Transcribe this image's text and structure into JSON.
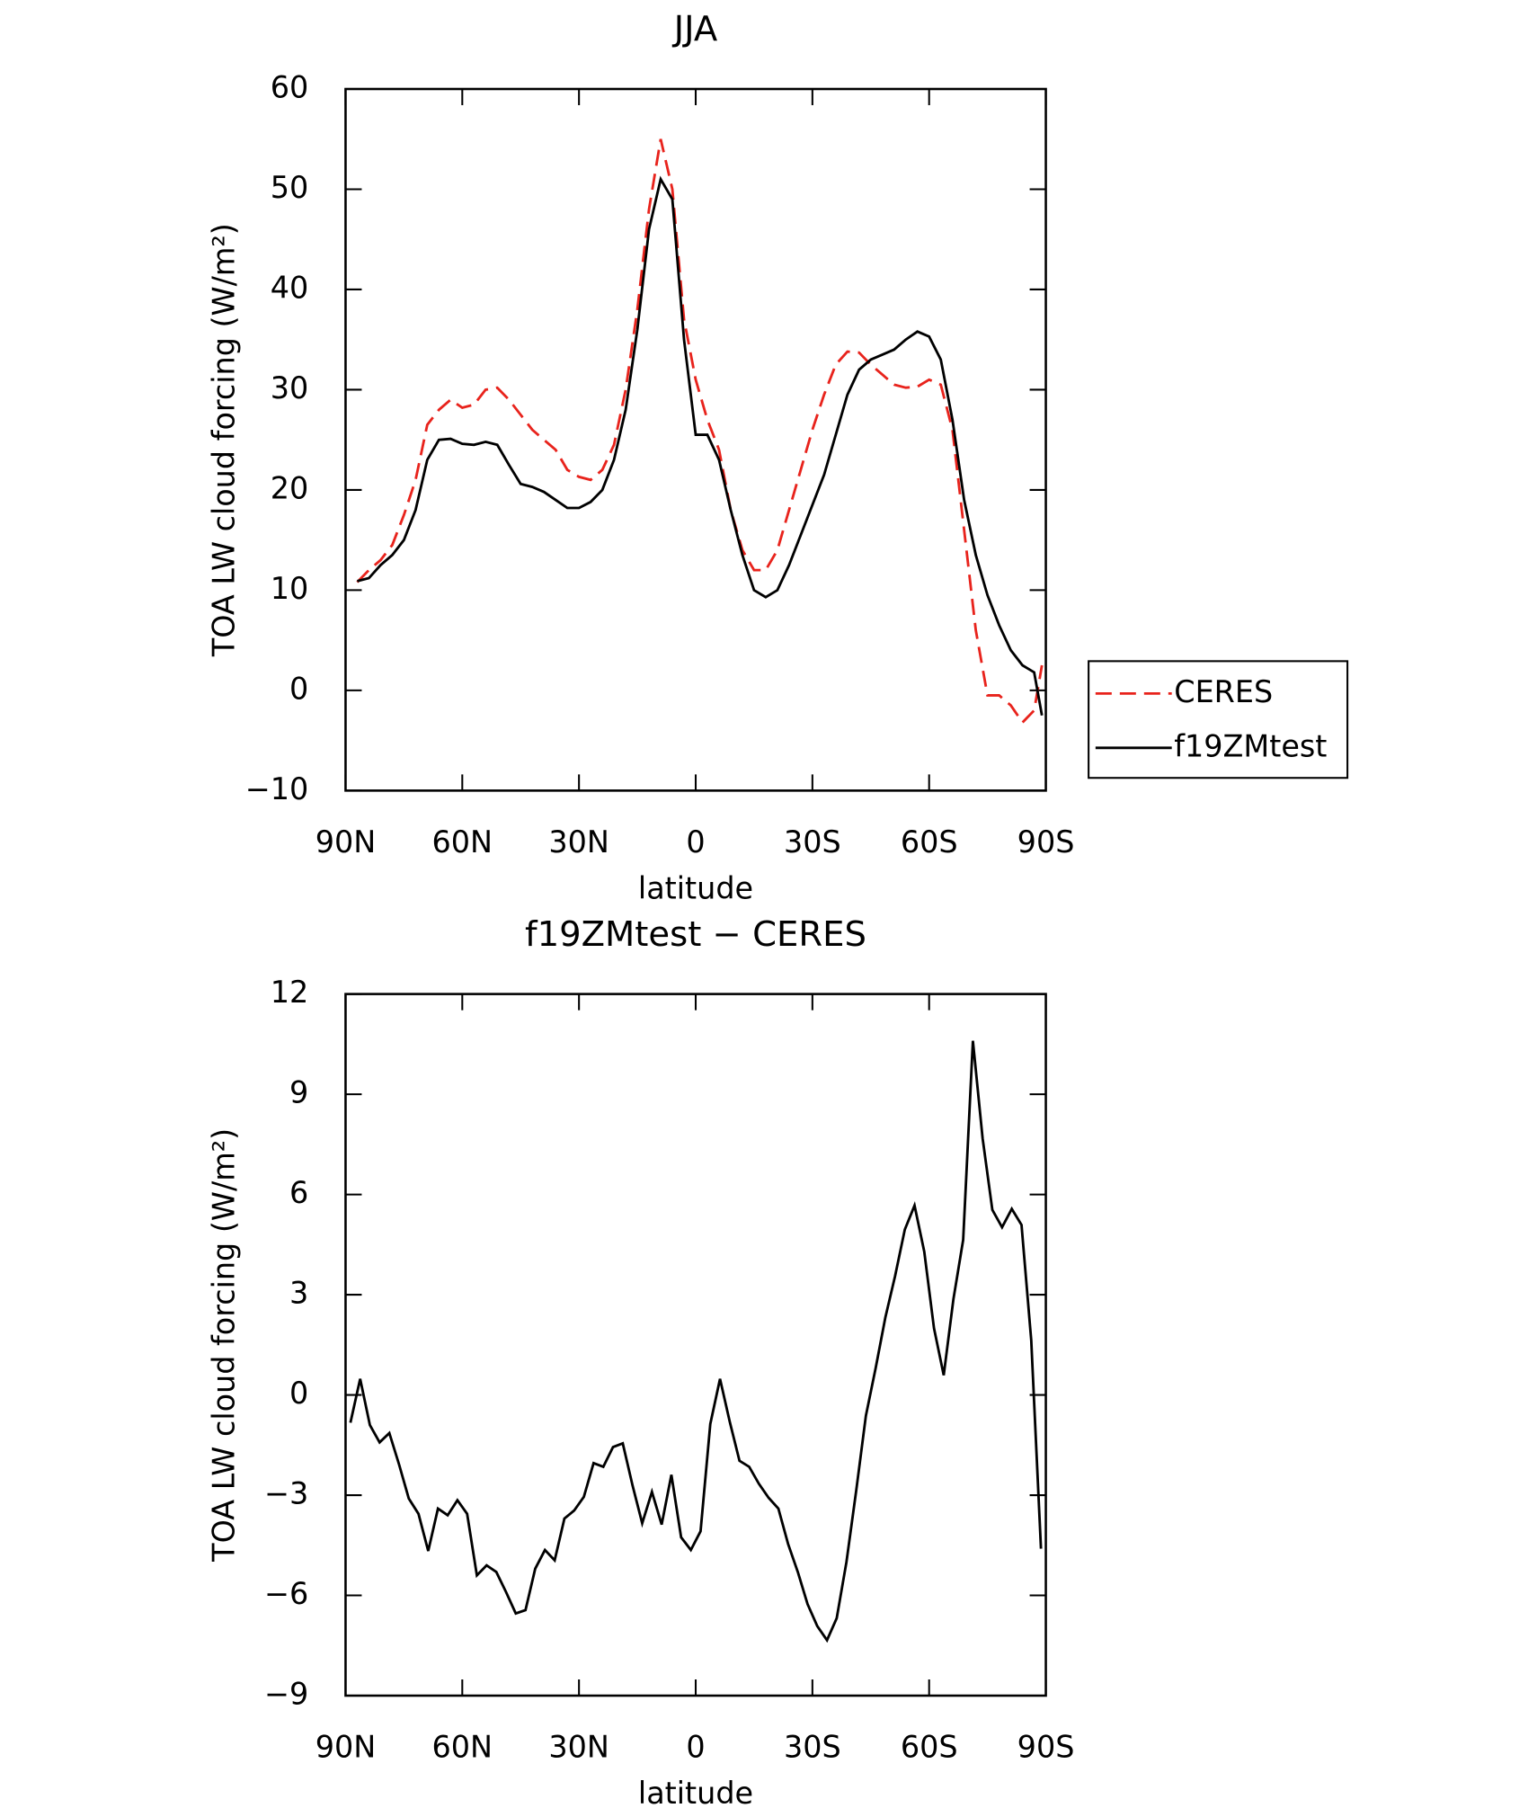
{
  "chart_data": [
    {
      "type": "line",
      "title": "JJA",
      "xlabel": "latitude",
      "ylabel": "TOA LW cloud forcing (W/m²)",
      "xlim": [
        90,
        -90
      ],
      "xticks": [
        {
          "value": 90,
          "label": "90N"
        },
        {
          "value": 60,
          "label": "60N"
        },
        {
          "value": 30,
          "label": "30N"
        },
        0,
        {
          "value": -30,
          "label": "30S"
        },
        {
          "value": -60,
          "label": "60S"
        },
        {
          "value": -90,
          "label": "90S"
        }
      ],
      "ylim": [
        -10,
        60
      ],
      "yticks": [
        {
          "value": -10,
          "label": "−10"
        },
        0,
        10,
        20,
        30,
        40,
        50,
        60
      ],
      "legend": "right",
      "x": [
        87,
        84,
        81,
        78,
        75,
        72,
        69,
        66,
        63,
        60,
        57,
        54,
        51,
        48,
        45,
        42,
        39,
        36,
        33,
        30,
        27,
        24,
        21,
        18,
        15,
        12,
        9,
        6,
        3,
        0,
        -3,
        -6,
        -9,
        -12,
        -15,
        -18,
        -21,
        -24,
        -27,
        -30,
        -33,
        -36,
        -39,
        -42,
        -45,
        -48,
        -51,
        -54,
        -57,
        -60,
        -63,
        -66,
        -69,
        -72,
        -75,
        -78,
        -81,
        -84,
        -87,
        -89
      ],
      "series": [
        {
          "name": "CERES",
          "color": "#e8231c",
          "dash": "dashed",
          "values": [
            10.8,
            12,
            13,
            14.5,
            17.5,
            21,
            26.5,
            28,
            29,
            28.2,
            28.5,
            30,
            30.2,
            29,
            27.5,
            26,
            25,
            24,
            22,
            21.3,
            21,
            22,
            24.5,
            30,
            38,
            48,
            55,
            50,
            37,
            31,
            27,
            24,
            18,
            14,
            12,
            12,
            14,
            18,
            22,
            26,
            29.5,
            32.5,
            33.8,
            33.7,
            32.5,
            31.5,
            30.5,
            30.2,
            30.3,
            31,
            30.5,
            26,
            16,
            6,
            -0.5,
            -0.5,
            -1.5,
            -3.2,
            -2,
            2.5
          ]
        },
        {
          "name": "f19ZMtest",
          "color": "#000000",
          "dash": "solid",
          "values": [
            10.9,
            11.2,
            12.5,
            13.5,
            15,
            18,
            23,
            25,
            25.1,
            24.6,
            24.5,
            24.8,
            24.5,
            22.5,
            20.6,
            20.3,
            19.8,
            19,
            18.2,
            18.2,
            18.8,
            20,
            23,
            28,
            36,
            46,
            51,
            49,
            35,
            25.5,
            25.5,
            23,
            18,
            13.5,
            10,
            9.3,
            10,
            12.5,
            15.5,
            18.5,
            21.5,
            25.5,
            29.5,
            32,
            33,
            33.5,
            34,
            35,
            35.8,
            35.3,
            33,
            27,
            19,
            13.5,
            9.5,
            6.5,
            4,
            2.5,
            1.8,
            -2.5
          ]
        }
      ]
    },
    {
      "type": "line",
      "title": "f19ZMtest − CERES",
      "xlabel": "latitude",
      "ylabel": "TOA LW cloud forcing (W/m²)",
      "xlim": [
        90,
        -90
      ],
      "xticks": [
        {
          "value": 90,
          "label": "90N"
        },
        {
          "value": 60,
          "label": "60N"
        },
        {
          "value": 30,
          "label": "30N"
        },
        0,
        {
          "value": -30,
          "label": "30S"
        },
        {
          "value": -60,
          "label": "60S"
        },
        {
          "value": -90,
          "label": "90S"
        }
      ],
      "ylim": [
        -9,
        12
      ],
      "yticks": [
        {
          "value": -9,
          "label": "−9"
        },
        {
          "value": -6,
          "label": "−6"
        },
        {
          "value": -3,
          "label": "−3"
        },
        0,
        3,
        6,
        9,
        12
      ],
      "x": [
        88.75,
        86.25,
        83.75,
        81.25,
        78.75,
        76.25,
        73.75,
        71.25,
        68.75,
        66.25,
        63.75,
        61.25,
        58.75,
        56.25,
        53.75,
        51.25,
        48.75,
        46.25,
        43.75,
        41.25,
        38.75,
        36.25,
        33.75,
        31.25,
        28.75,
        26.25,
        23.75,
        21.25,
        18.75,
        16.25,
        13.75,
        11.25,
        8.75,
        6.25,
        3.75,
        1.25,
        -1.25,
        -3.75,
        -6.25,
        -8.75,
        -11.25,
        -13.75,
        -16.25,
        -18.75,
        -21.25,
        -23.75,
        -26.25,
        -28.75,
        -31.25,
        -33.75,
        -36.25,
        -38.75,
        -41.25,
        -43.75,
        -46.25,
        -48.75,
        -51.25,
        -53.75,
        -56.25,
        -58.75,
        -61.25,
        -63.75,
        -66.25,
        -68.75,
        -71.25,
        -73.75,
        -76.25,
        -78.75,
        -81.25,
        -83.75,
        -86.25,
        -88.75
      ],
      "series": [
        {
          "color": "#000000",
          "dash": "solid",
          "values": [
            -0.83,
            0.48,
            -0.9,
            -1.42,
            -1.14,
            -2.08,
            -3.1,
            -3.56,
            -4.67,
            -3.4,
            -3.6,
            -3.15,
            -3.56,
            -5.4,
            -5.1,
            -5.3,
            -5.9,
            -6.54,
            -6.44,
            -5.2,
            -4.64,
            -4.95,
            -3.7,
            -3.46,
            -3.05,
            -2.04,
            -2.15,
            -1.56,
            -1.45,
            -2.7,
            -3.84,
            -2.9,
            -3.88,
            -2.39,
            -4.26,
            -4.64,
            -4.08,
            -0.87,
            0.48,
            -0.8,
            -1.97,
            -2.15,
            -2.66,
            -3.08,
            -3.4,
            -4.46,
            -5.3,
            -6.26,
            -6.92,
            -7.34,
            -6.68,
            -5.0,
            -2.87,
            -0.62,
            0.8,
            2.32,
            3.56,
            4.95,
            5.67,
            4.29,
            2.0,
            0.59,
            2.87,
            4.64,
            10.6,
            7.68,
            5.54,
            5.02,
            5.57,
            5.09,
            1.63,
            -4.6
          ]
        }
      ]
    }
  ]
}
